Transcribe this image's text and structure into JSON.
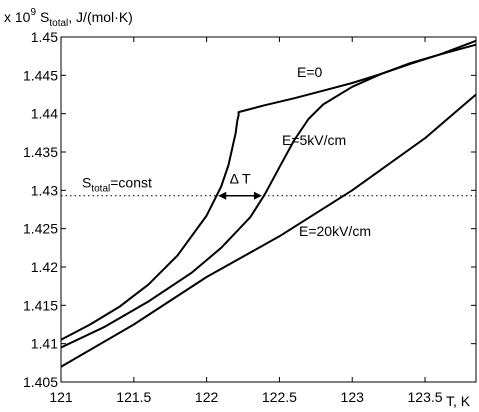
{
  "chart_data": {
    "type": "line",
    "title": "",
    "ylabel": "S",
    "ylabel_sub": "total",
    "ylabel_units": ", J/(mol·K)",
    "y_multiplier_prefix": "x 10",
    "y_multiplier_exp": "9",
    "xlabel": "T, K",
    "xlim": [
      121,
      123.85
    ],
    "ylim": [
      1.405,
      1.45
    ],
    "x_ticks": [
      121,
      121.5,
      122,
      122.5,
      123,
      123.5
    ],
    "x_tick_labels": [
      "121",
      "121.5",
      "122",
      "122.5",
      "123",
      "123.5"
    ],
    "y_ticks": [
      1.405,
      1.41,
      1.415,
      1.42,
      1.425,
      1.43,
      1.435,
      1.44,
      1.445,
      1.45
    ],
    "y_tick_labels": [
      "1.405",
      "1.41",
      "1.415",
      "1.42",
      "1.425",
      "1.43",
      "1.435",
      "1.44",
      "1.445",
      "1.45"
    ],
    "grid": false,
    "series": [
      {
        "name": "E=0",
        "color": "#000000",
        "x": [
          121,
          121.2,
          121.4,
          121.6,
          121.8,
          122.0,
          122.1,
          122.15,
          122.2,
          122.21,
          122.22,
          122.22,
          122.4,
          122.6,
          122.8,
          123.0,
          123.2,
          123.4,
          123.6,
          123.85
        ],
        "y": [
          1.4105,
          1.4125,
          1.4148,
          1.4177,
          1.4215,
          1.4267,
          1.4305,
          1.4333,
          1.4375,
          1.439,
          1.4398,
          1.4402,
          1.4411,
          1.442,
          1.443,
          1.444,
          1.4452,
          1.4465,
          1.4477,
          1.4495
        ]
      },
      {
        "name": "E=5kV/cm",
        "color": "#000000",
        "x": [
          121,
          121.3,
          121.6,
          121.9,
          122.1,
          122.3,
          122.4,
          122.5,
          122.6,
          122.7,
          122.8,
          123.0,
          123.2,
          123.4,
          123.6,
          123.85
        ],
        "y": [
          1.4095,
          1.4122,
          1.4155,
          1.4193,
          1.4225,
          1.4265,
          1.4295,
          1.433,
          1.4365,
          1.4393,
          1.4412,
          1.4435,
          1.4452,
          1.4466,
          1.4477,
          1.449
        ]
      },
      {
        "name": "E=20kV/cm",
        "color": "#000000",
        "x": [
          121,
          121.5,
          122.0,
          122.5,
          123.0,
          123.5,
          123.85
        ],
        "y": [
          1.407,
          1.4125,
          1.4187,
          1.424,
          1.43,
          1.4368,
          1.4425
        ]
      }
    ],
    "reference_line": {
      "label": "S",
      "label_sub": "total",
      "label_suffix": "=const",
      "y": 1.4293,
      "style": "dotted"
    },
    "annotation": {
      "label": "Δ T",
      "x_from": 122.08,
      "x_to": 122.38,
      "y": 1.4293
    }
  }
}
